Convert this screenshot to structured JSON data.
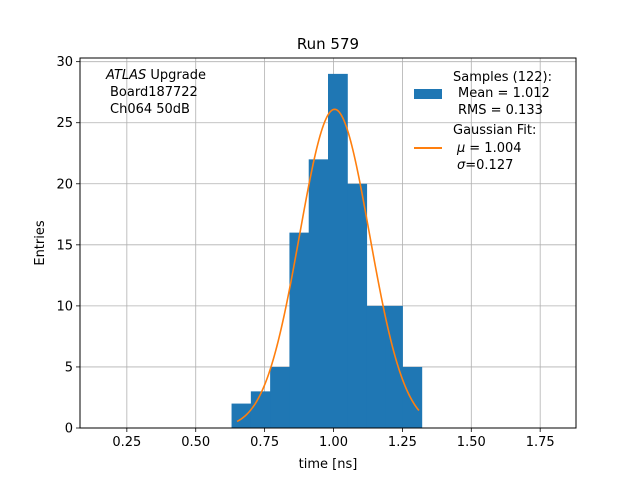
{
  "chart_data": {
    "type": "bar",
    "title": "Run 579",
    "xlabel": "time [ns]",
    "ylabel": "Entries",
    "xlim": [
      0.08,
      1.88
    ],
    "ylim": [
      0,
      30.3
    ],
    "xticks": [
      0.25,
      0.5,
      0.75,
      1.0,
      1.25,
      1.5,
      1.75
    ],
    "xtick_labels": [
      "0.25",
      "0.50",
      "0.75",
      "1.00",
      "1.25",
      "1.50",
      "1.75"
    ],
    "yticks": [
      0,
      5,
      10,
      15,
      20,
      25,
      30
    ],
    "ytick_labels": [
      "0",
      "5",
      "10",
      "15",
      "20",
      "25",
      "30"
    ],
    "grid": true,
    "legend_position": "top-right",
    "annotation": {
      "experiment": "ATLAS",
      "experiment_suffix": " Upgrade",
      "board": "Board187722",
      "channel": "Ch064 50dB"
    },
    "histogram": {
      "name": "Samples (122):",
      "mean_label": "Mean = 1.012",
      "rms_label": "RMS = 0.133",
      "color": "#1f77b4",
      "bins": [
        {
          "x0": 0.63,
          "x1": 0.7,
          "count": 2
        },
        {
          "x0": 0.7,
          "x1": 0.77,
          "count": 3
        },
        {
          "x0": 0.77,
          "x1": 0.84,
          "count": 5
        },
        {
          "x0": 0.84,
          "x1": 0.91,
          "count": 16
        },
        {
          "x0": 0.91,
          "x1": 0.98,
          "count": 22
        },
        {
          "x0": 0.98,
          "x1": 1.05,
          "count": 29
        },
        {
          "x0": 1.05,
          "x1": 1.12,
          "count": 20
        },
        {
          "x0": 1.12,
          "x1": 1.19,
          "count": 10
        },
        {
          "x0": 1.19,
          "x1": 1.25,
          "count": 10
        },
        {
          "x0": 1.25,
          "x1": 1.32,
          "count": 5
        }
      ]
    },
    "fit": {
      "name": "Gaussian Fit:",
      "mu_label": "= 1.004",
      "sigma_label": "=0.127",
      "mu": 1.004,
      "sigma": 0.127,
      "amplitude": 26.1,
      "x_range": [
        0.65,
        1.31
      ],
      "color": "#ff7f0e"
    }
  }
}
